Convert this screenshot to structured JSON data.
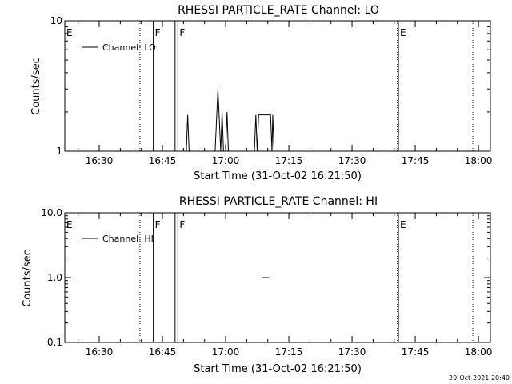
{
  "footer": {
    "timestamp": "20-Oct-2021 20:40"
  },
  "chart_data": [
    {
      "type": "line",
      "title": "RHESSI PARTICLE_RATE Channel: LO",
      "xlabel": "Start Time (31-Oct-02 16:21:50)",
      "ylabel": "Counts/sec",
      "legend": {
        "label": "Channel: LO",
        "placement": "top-left"
      },
      "y_scale": "log",
      "xlim": [
        "16:21:50",
        "18:02:50"
      ],
      "ylim": [
        1,
        10
      ],
      "x_ticks": [
        "16:30",
        "16:45",
        "17:00",
        "17:15",
        "17:30",
        "17:45",
        "18:00"
      ],
      "y_ticks": [
        {
          "value": 1,
          "label": "1"
        },
        {
          "value": 10,
          "label": "10"
        }
      ],
      "flags": [
        {
          "label": "E",
          "time": "16:21:50",
          "style": "none"
        },
        {
          "label": "F",
          "time": "16:42:50",
          "style": "solid"
        },
        {
          "label": "F",
          "time": "16:48:40",
          "style": "solid"
        },
        {
          "label": "E",
          "time": "17:41:00",
          "style": "dotted-solid"
        }
      ],
      "markers": [
        {
          "time": "16:39:40",
          "style": "dotted"
        },
        {
          "time": "16:48:00",
          "style": "solid"
        },
        {
          "time": "17:40:45",
          "style": "dotted"
        },
        {
          "time": "17:58:40",
          "style": "dotted"
        }
      ],
      "series": [
        {
          "name": "Channel: LO",
          "points": [
            [
              "16:50:40",
              1
            ],
            [
              "16:51:00",
              1.9
            ],
            [
              "16:51:20",
              1
            ],
            [
              "16:57:30",
              1
            ],
            [
              "16:58:10",
              3.0
            ],
            [
              "16:58:50",
              1
            ],
            [
              "16:59:10",
              2
            ],
            [
              "16:59:30",
              1
            ],
            [
              "17:00:00",
              1
            ],
            [
              "17:00:20",
              2
            ],
            [
              "17:00:40",
              1
            ],
            [
              "17:06:50",
              1
            ],
            [
              "17:07:10",
              1.9
            ],
            [
              "17:07:30",
              1.0
            ],
            [
              "17:07:50",
              1.9
            ],
            [
              "17:10:40",
              1.9
            ],
            [
              "17:11:00",
              1.0
            ],
            [
              "17:11:10",
              1.9
            ],
            [
              "17:11:30",
              1
            ]
          ]
        }
      ]
    },
    {
      "type": "line",
      "title": "RHESSI PARTICLE_RATE Channel: HI",
      "xlabel": "Start Time (31-Oct-02 16:21:50)",
      "ylabel": "Counts/sec",
      "legend": {
        "label": "Channel: HI",
        "placement": "top-left"
      },
      "y_scale": "log",
      "xlim": [
        "16:21:50",
        "18:02:50"
      ],
      "ylim": [
        0.1,
        10
      ],
      "x_ticks": [
        "16:30",
        "16:45",
        "17:00",
        "17:15",
        "17:30",
        "17:45",
        "18:00"
      ],
      "y_ticks": [
        {
          "value": 0.1,
          "label": "0.1"
        },
        {
          "value": 1,
          "label": "1.0"
        },
        {
          "value": 10,
          "label": "10.0"
        }
      ],
      "flags": [
        {
          "label": "E",
          "time": "16:21:50",
          "style": "none"
        },
        {
          "label": "F",
          "time": "16:42:50",
          "style": "solid"
        },
        {
          "label": "F",
          "time": "16:48:40",
          "style": "solid"
        },
        {
          "label": "E",
          "time": "17:41:00",
          "style": "dotted-solid"
        }
      ],
      "markers": [
        {
          "time": "16:39:40",
          "style": "dotted"
        },
        {
          "time": "16:48:00",
          "style": "solid"
        },
        {
          "time": "17:40:45",
          "style": "dotted"
        },
        {
          "time": "17:58:40",
          "style": "dotted"
        }
      ],
      "series": [
        {
          "name": "Channel: HI",
          "points": [
            [
              "17:08:40",
              1.0
            ],
            [
              "17:10:20",
              1.0
            ]
          ]
        }
      ]
    }
  ]
}
